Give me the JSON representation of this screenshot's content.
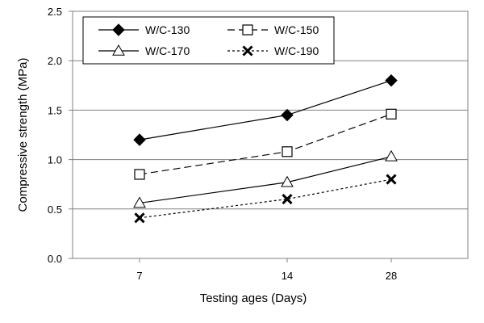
{
  "chart_data": {
    "type": "line",
    "categories": [
      "7",
      "14",
      "28"
    ],
    "xlabel": "Testing ages (Days)",
    "ylabel": "Compressive strength (MPa)",
    "ylim": [
      0,
      2.5
    ],
    "yticks": [
      "0.0",
      "0.5",
      "1.0",
      "1.5",
      "2.0",
      "2.5"
    ],
    "grid": "horizontal",
    "legend_position": "top-left",
    "series": [
      {
        "name": "W/C-130",
        "values": [
          1.2,
          1.45,
          1.8
        ],
        "marker": "filled-diamond",
        "line": "solid"
      },
      {
        "name": "W/C-150",
        "values": [
          0.85,
          1.08,
          1.46
        ],
        "marker": "open-square",
        "line": "dashed"
      },
      {
        "name": "W/C-170",
        "values": [
          0.56,
          0.77,
          1.03
        ],
        "marker": "open-triangle",
        "line": "solid"
      },
      {
        "name": "W/C-190",
        "values": [
          0.41,
          0.6,
          0.8
        ],
        "marker": "x-cross",
        "line": "dotted"
      }
    ]
  }
}
